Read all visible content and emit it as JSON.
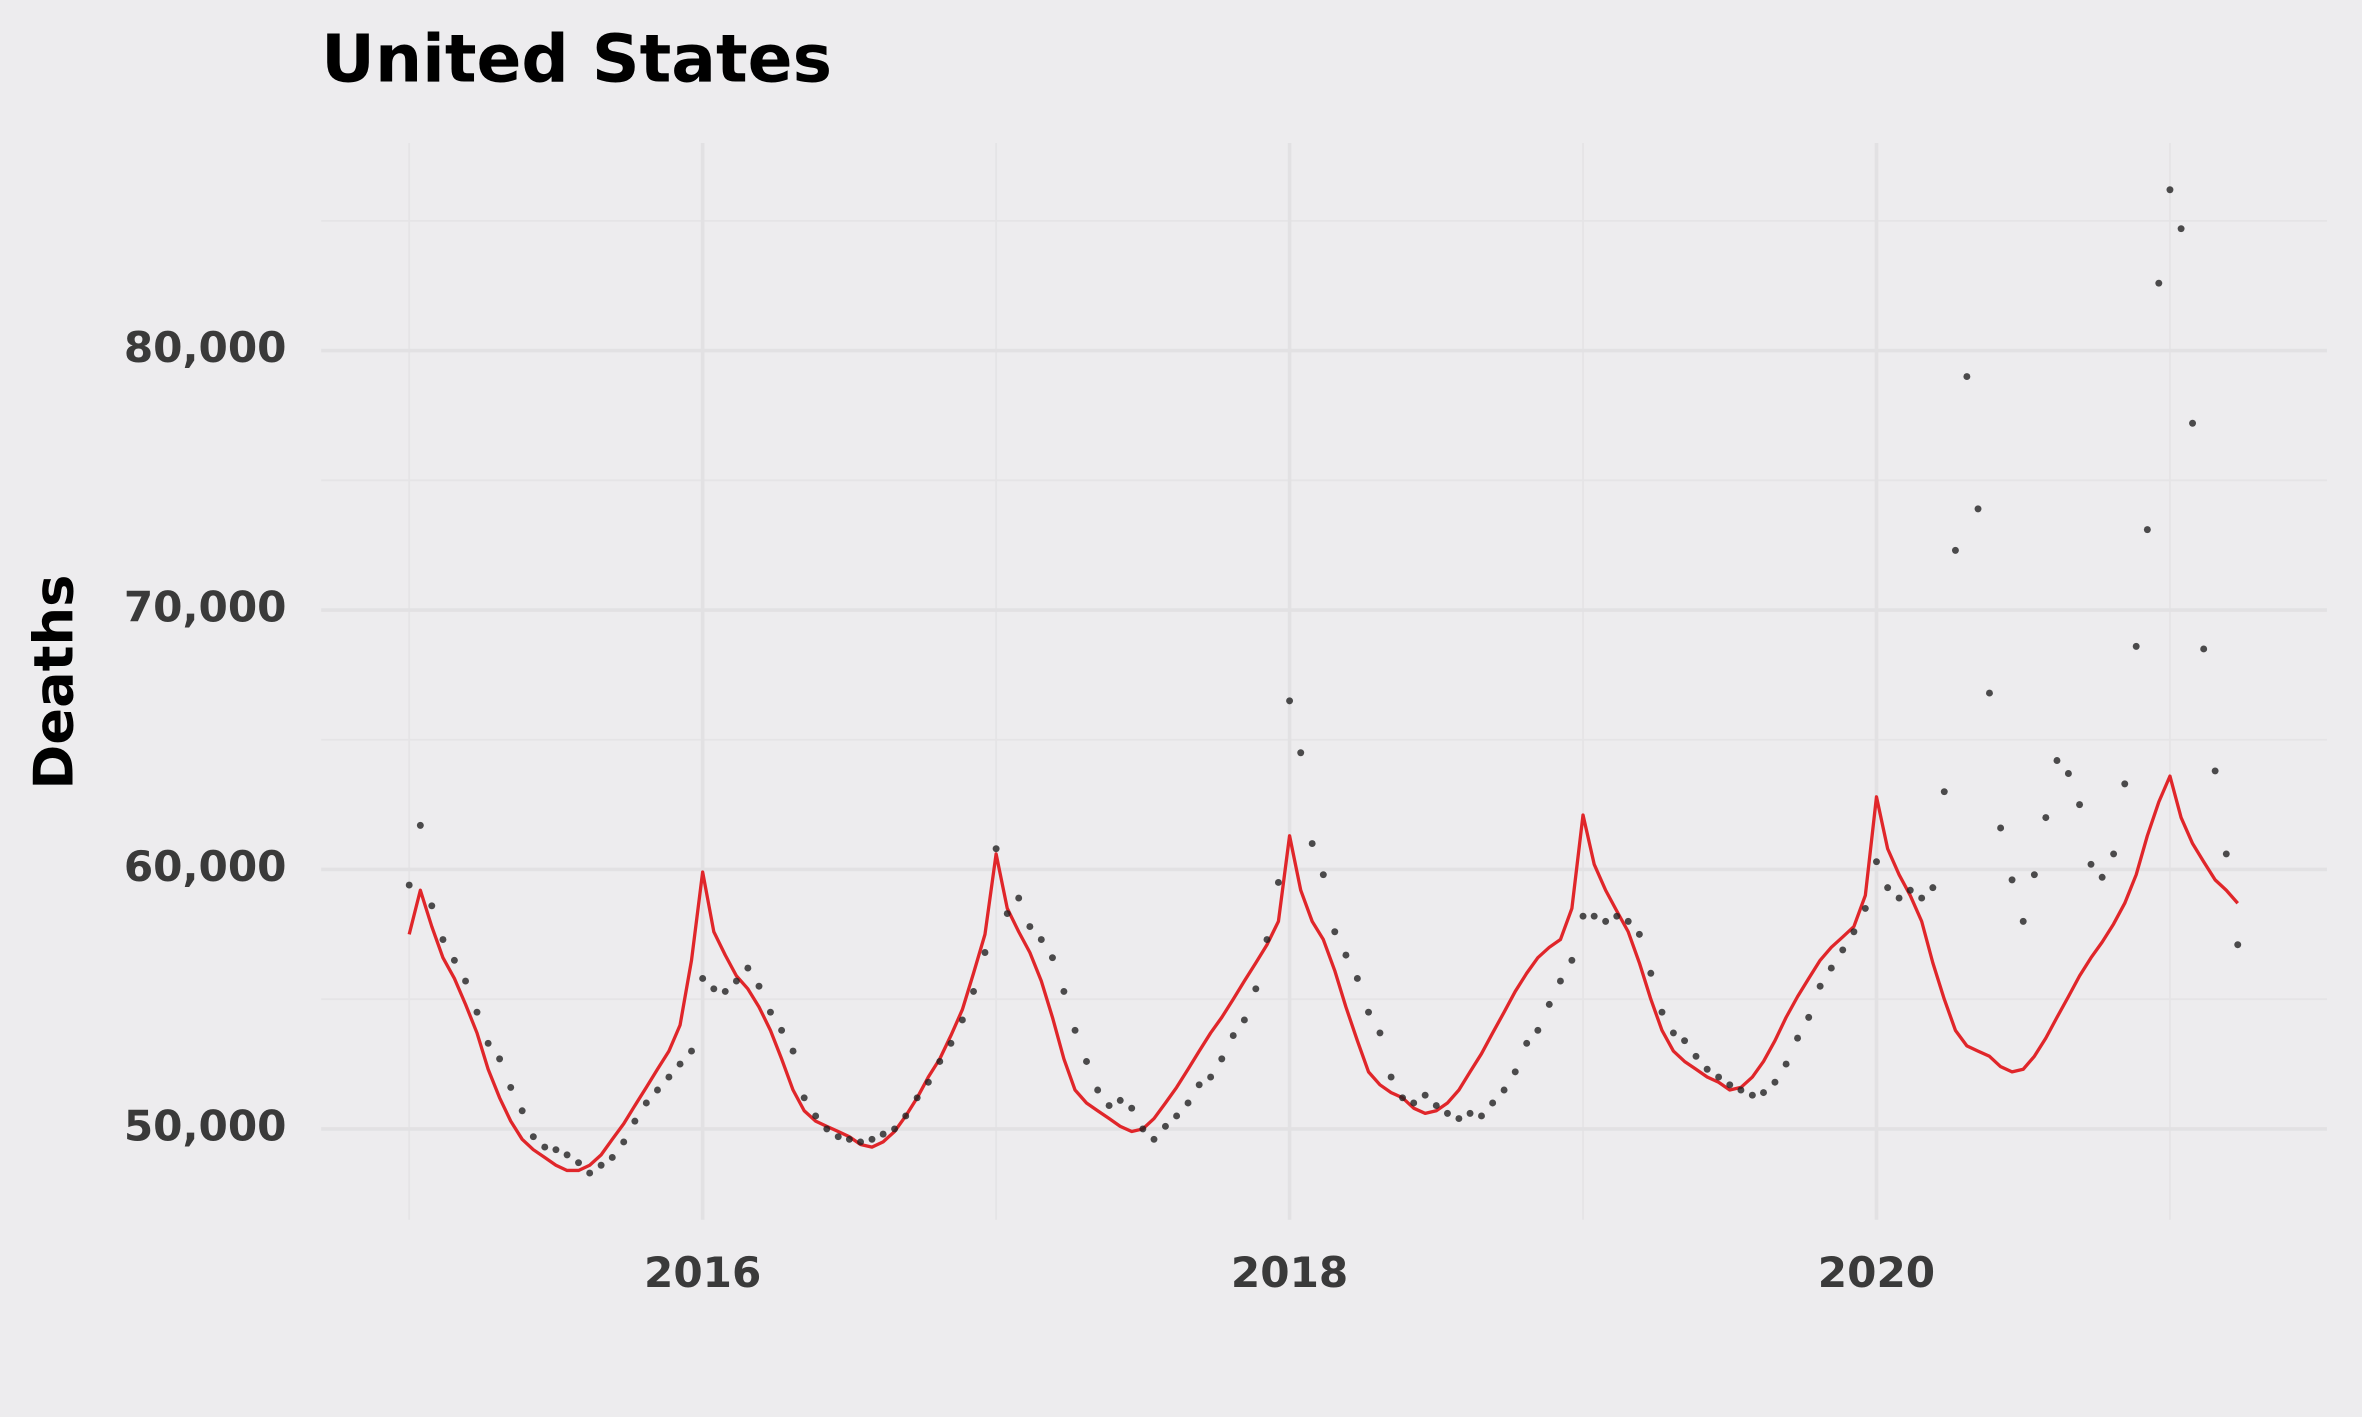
{
  "chart_data": {
    "type": "scatter",
    "title": "United States",
    "y_label": "Deaths",
    "xlim": [
      2014.7,
      2021.535
    ],
    "ylim": [
      46500,
      88000
    ],
    "xticks": [
      2016,
      2018,
      2020
    ],
    "yticks": [
      {
        "value": 50000,
        "label": "50,000"
      },
      {
        "value": 60000,
        "label": "60,000"
      },
      {
        "value": 70000,
        "label": "70,000"
      },
      {
        "value": 80000,
        "label": "80,000"
      }
    ],
    "grid": true,
    "minor_grid": true,
    "x": [
      2015.0,
      2015.038,
      2015.077,
      2015.115,
      2015.154,
      2015.192,
      2015.231,
      2015.269,
      2015.308,
      2015.346,
      2015.385,
      2015.423,
      2015.462,
      2015.5,
      2015.538,
      2015.577,
      2015.615,
      2015.654,
      2015.692,
      2015.731,
      2015.769,
      2015.808,
      2015.846,
      2015.885,
      2015.923,
      2015.962,
      2016.0,
      2016.038,
      2016.077,
      2016.115,
      2016.154,
      2016.192,
      2016.231,
      2016.269,
      2016.308,
      2016.346,
      2016.385,
      2016.423,
      2016.462,
      2016.5,
      2016.538,
      2016.577,
      2016.615,
      2016.654,
      2016.692,
      2016.731,
      2016.769,
      2016.808,
      2016.846,
      2016.885,
      2016.923,
      2016.962,
      2017.0,
      2017.038,
      2017.077,
      2017.115,
      2017.154,
      2017.192,
      2017.231,
      2017.269,
      2017.308,
      2017.346,
      2017.385,
      2017.423,
      2017.462,
      2017.5,
      2017.538,
      2017.577,
      2017.615,
      2017.654,
      2017.692,
      2017.731,
      2017.769,
      2017.808,
      2017.846,
      2017.885,
      2017.923,
      2017.962,
      2018.0,
      2018.038,
      2018.077,
      2018.115,
      2018.154,
      2018.192,
      2018.231,
      2018.269,
      2018.308,
      2018.346,
      2018.385,
      2018.423,
      2018.462,
      2018.5,
      2018.538,
      2018.577,
      2018.615,
      2018.654,
      2018.692,
      2018.731,
      2018.769,
      2018.808,
      2018.846,
      2018.885,
      2018.923,
      2018.962,
      2019.0,
      2019.038,
      2019.077,
      2019.115,
      2019.154,
      2019.192,
      2019.231,
      2019.269,
      2019.308,
      2019.346,
      2019.385,
      2019.423,
      2019.462,
      2019.5,
      2019.538,
      2019.577,
      2019.615,
      2019.654,
      2019.692,
      2019.731,
      2019.769,
      2019.808,
      2019.846,
      2019.885,
      2019.923,
      2019.962,
      2020.0,
      2020.038,
      2020.077,
      2020.115,
      2020.154,
      2020.192,
      2020.231,
      2020.269,
      2020.308,
      2020.346,
      2020.385,
      2020.423,
      2020.462,
      2020.5,
      2020.538,
      2020.577,
      2020.615,
      2020.654,
      2020.692,
      2020.731,
      2020.769,
      2020.808,
      2020.846,
      2020.885,
      2020.923,
      2020.962,
      2021.0,
      2021.038,
      2021.077,
      2021.115,
      2021.154,
      2021.192,
      2021.231
    ],
    "series": [
      {
        "mode": "points",
        "color": "#222222",
        "values": [
          59400,
          61700,
          58600,
          57300,
          56500,
          55700,
          54500,
          53300,
          52700,
          51600,
          50700,
          49700,
          49300,
          49200,
          49000,
          48700,
          48300,
          48600,
          48900,
          49500,
          50300,
          51000,
          51500,
          52000,
          52500,
          53000,
          55800,
          55400,
          55300,
          55700,
          56200,
          55500,
          54500,
          53800,
          53000,
          51200,
          50500,
          50000,
          49700,
          49600,
          49500,
          49600,
          49800,
          50000,
          50500,
          51200,
          51800,
          52600,
          53300,
          54200,
          55300,
          56800,
          60800,
          58300,
          58900,
          57800,
          57300,
          56600,
          55300,
          53800,
          52600,
          51500,
          50900,
          51100,
          50800,
          50000,
          49600,
          50100,
          50500,
          51000,
          51700,
          52000,
          52700,
          53600,
          54200,
          55400,
          57300,
          59500,
          66500,
          64500,
          61000,
          59800,
          57600,
          56700,
          55800,
          54500,
          53700,
          52000,
          51200,
          51000,
          51300,
          50900,
          50600,
          50400,
          50600,
          50500,
          51000,
          51500,
          52200,
          53300,
          53800,
          54800,
          55700,
          56500,
          58200,
          58200,
          58000,
          58200,
          58000,
          57500,
          56000,
          54500,
          53700,
          53400,
          52800,
          52300,
          52000,
          51700,
          51500,
          51300,
          51400,
          51800,
          52500,
          53500,
          54300,
          55500,
          56200,
          56900,
          57600,
          58500,
          60300,
          59300,
          58900,
          59200,
          58900,
          59300,
          63000,
          72300,
          79000,
          73900,
          66800,
          61600,
          59600,
          58000,
          59800,
          62000,
          64200,
          63700,
          62500,
          60200,
          59700,
          60600,
          63300,
          68600,
          73100,
          82600,
          86200,
          84700,
          77200,
          68500,
          63800,
          60600,
          57100
        ]
      },
      {
        "mode": "line",
        "color": "#e0262a",
        "values": [
          57500,
          59200,
          57800,
          56600,
          55800,
          54800,
          53700,
          52300,
          51200,
          50300,
          49600,
          49200,
          48900,
          48600,
          48400,
          48400,
          48600,
          49000,
          49600,
          50200,
          50900,
          51600,
          52300,
          53000,
          54000,
          56500,
          59900,
          57600,
          56700,
          55900,
          55400,
          54700,
          53800,
          52700,
          51500,
          50700,
          50300,
          50100,
          49900,
          49700,
          49400,
          49300,
          49500,
          49900,
          50500,
          51200,
          52000,
          52700,
          53600,
          54600,
          56000,
          57500,
          60600,
          58500,
          57600,
          56800,
          55700,
          54300,
          52700,
          51500,
          51000,
          50700,
          50400,
          50100,
          49900,
          50000,
          50400,
          51000,
          51600,
          52300,
          53000,
          53700,
          54300,
          55000,
          55700,
          56400,
          57100,
          58000,
          61300,
          59200,
          58000,
          57300,
          56100,
          54700,
          53400,
          52200,
          51700,
          51400,
          51200,
          50800,
          50600,
          50700,
          51000,
          51500,
          52200,
          52900,
          53700,
          54500,
          55300,
          56000,
          56600,
          57000,
          57300,
          58500,
          62100,
          60200,
          59200,
          58400,
          57600,
          56400,
          55000,
          53800,
          53000,
          52600,
          52300,
          52000,
          51800,
          51500,
          51600,
          52000,
          52600,
          53400,
          54300,
          55100,
          55800,
          56500,
          57000,
          57400,
          57800,
          59000,
          62800,
          60800,
          59800,
          59000,
          58000,
          56400,
          55000,
          53800,
          53200,
          53000,
          52800,
          52400,
          52200,
          52300,
          52800,
          53500,
          54300,
          55100,
          55900,
          56600,
          57200,
          57900,
          58700,
          59800,
          61300,
          62600,
          63600,
          62000,
          61000,
          60300,
          59600,
          59200,
          58700
        ]
      }
    ]
  }
}
